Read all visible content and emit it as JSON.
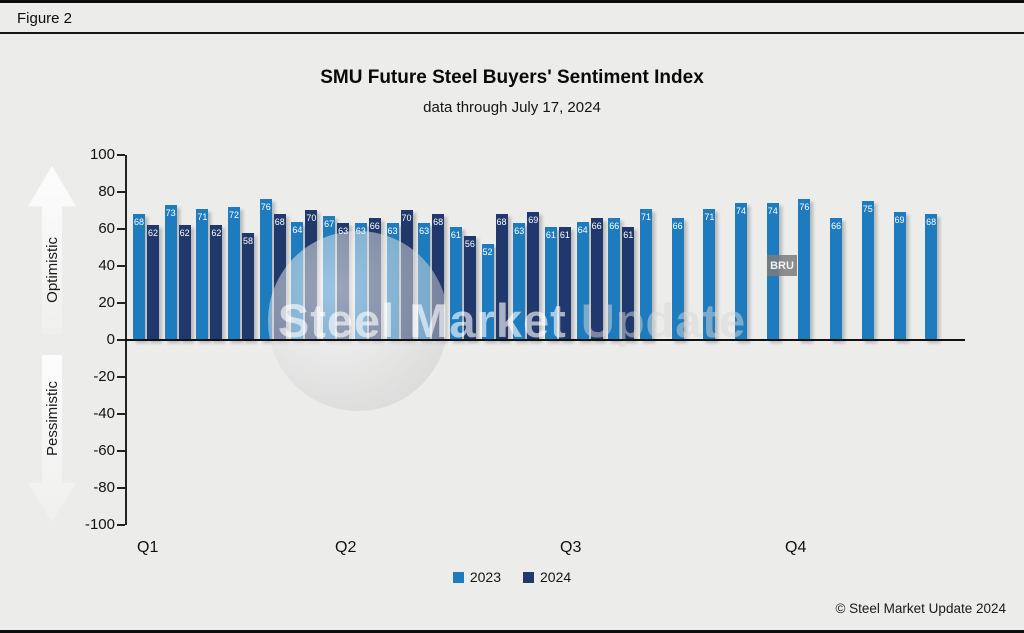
{
  "figure_label": "Figure 2",
  "chart_data": {
    "type": "bar",
    "title": "SMU Future Steel Buyers' Sentiment Index",
    "subtitle": "data through July 17, 2024",
    "ylim": [
      -100,
      100
    ],
    "yticks": [
      100,
      80,
      60,
      40,
      20,
      0,
      -20,
      -40,
      -60,
      -80,
      -100
    ],
    "grid": false,
    "legend_position": "bottom",
    "quarter_labels": [
      "Q1",
      "Q2",
      "Q3",
      "Q4"
    ],
    "axis_annotations": {
      "positive": "Optimistic",
      "negative": "Pessimistic"
    },
    "legend": [
      {
        "label": "2023",
        "color": "#1E7CBE"
      },
      {
        "label": "2024",
        "color": "#20386B"
      }
    ],
    "groups": [
      {
        "y2023": 68,
        "y2024": 62
      },
      {
        "y2023": 73,
        "y2024": 62
      },
      {
        "y2023": 71,
        "y2024": 62
      },
      {
        "y2023": 72,
        "y2024": 58
      },
      {
        "y2023": 76,
        "y2024": 68
      },
      {
        "y2023": 64,
        "y2024": 70
      },
      {
        "y2023": 67,
        "y2024": 63
      },
      {
        "y2023": 63,
        "y2024": 66
      },
      {
        "y2023": 63,
        "y2024": 70
      },
      {
        "y2023": 63,
        "y2024": 68
      },
      {
        "y2023": 61,
        "y2024": 56
      },
      {
        "y2023": 52,
        "y2024": 68
      },
      {
        "y2023": 63,
        "y2024": 69
      },
      {
        "y2023": 61,
        "y2024": 61
      },
      {
        "y2023": 64,
        "y2024": 66
      },
      {
        "y2023": 66,
        "y2024": 61
      },
      {
        "y2023": 71,
        "y2024": null
      },
      {
        "y2023": 66,
        "y2024": null
      },
      {
        "y2023": 71,
        "y2024": null
      },
      {
        "y2023": 74,
        "y2024": null
      },
      {
        "y2023": 74,
        "y2024": null
      },
      {
        "y2023": 76,
        "y2024": null
      },
      {
        "y2023": 66,
        "y2024": null
      },
      {
        "y2023": 75,
        "y2024": null
      },
      {
        "y2023": 69,
        "y2024": null
      },
      {
        "y2023": 68,
        "y2024": null
      }
    ]
  },
  "watermark": {
    "text_primary": "Steel Market",
    "text_secondary": "Update",
    "badge": "BRU"
  },
  "footer": {
    "copyright": "© Steel Market Update 2024"
  }
}
